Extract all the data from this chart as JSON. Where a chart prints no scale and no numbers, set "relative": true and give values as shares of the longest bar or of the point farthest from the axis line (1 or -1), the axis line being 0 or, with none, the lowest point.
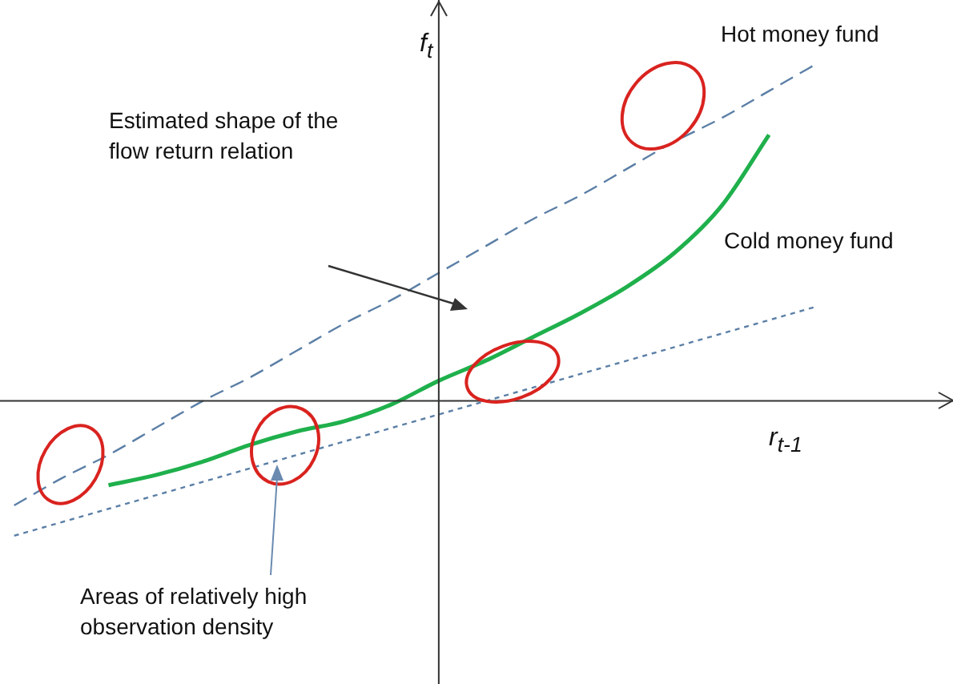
{
  "chart_data": {
    "type": "line",
    "relative": true,
    "xlabel": "r$_{t-1}$",
    "ylabel": "f$_{t}$",
    "categories": [
      null,
      null,
      null,
      null,
      null,
      null,
      null,
      null,
      null,
      null,
      null,
      null,
      null,
      null,
      null,
      null,
      null,
      null,
      null,
      null
    ],
    "series": [
      {
        "name": "Hot money fund",
        "color": "#5b7fa6",
        "line_style": "dashed",
        "values": [
          -0.31,
          -0.23,
          -0.16,
          -0.08,
          0.0,
          0.07,
          0.15,
          0.23,
          0.3,
          0.38,
          0.46,
          0.54,
          0.61,
          0.69,
          0.77,
          0.84,
          0.92,
          1.0,
          null,
          null
        ]
      },
      {
        "name": "Cold money  fund",
        "color": "#5b7fa6",
        "line_style": "dotted",
        "values": [
          -0.4,
          -0.36,
          -0.32,
          -0.28,
          -0.24,
          -0.2,
          -0.16,
          -0.12,
          -0.08,
          -0.04,
          0.0,
          0.04,
          0.08,
          0.12,
          0.16,
          0.2,
          0.24,
          0.28,
          null,
          null
        ]
      },
      {
        "color": "#1fb04c",
        "line_style": "solid",
        "values": [
          null,
          null,
          -0.25,
          -0.22,
          -0.18,
          -0.13,
          -0.09,
          -0.06,
          -0.01,
          0.06,
          0.12,
          0.19,
          0.26,
          0.34,
          0.44,
          0.58,
          0.79,
          null,
          null,
          null
        ]
      }
    ],
    "annotations": [
      "Estimated shape of the flow return relation",
      "Areas of relatively high observation density"
    ],
    "legend": false,
    "marker": "none",
    "tick_labels": false
  }
}
